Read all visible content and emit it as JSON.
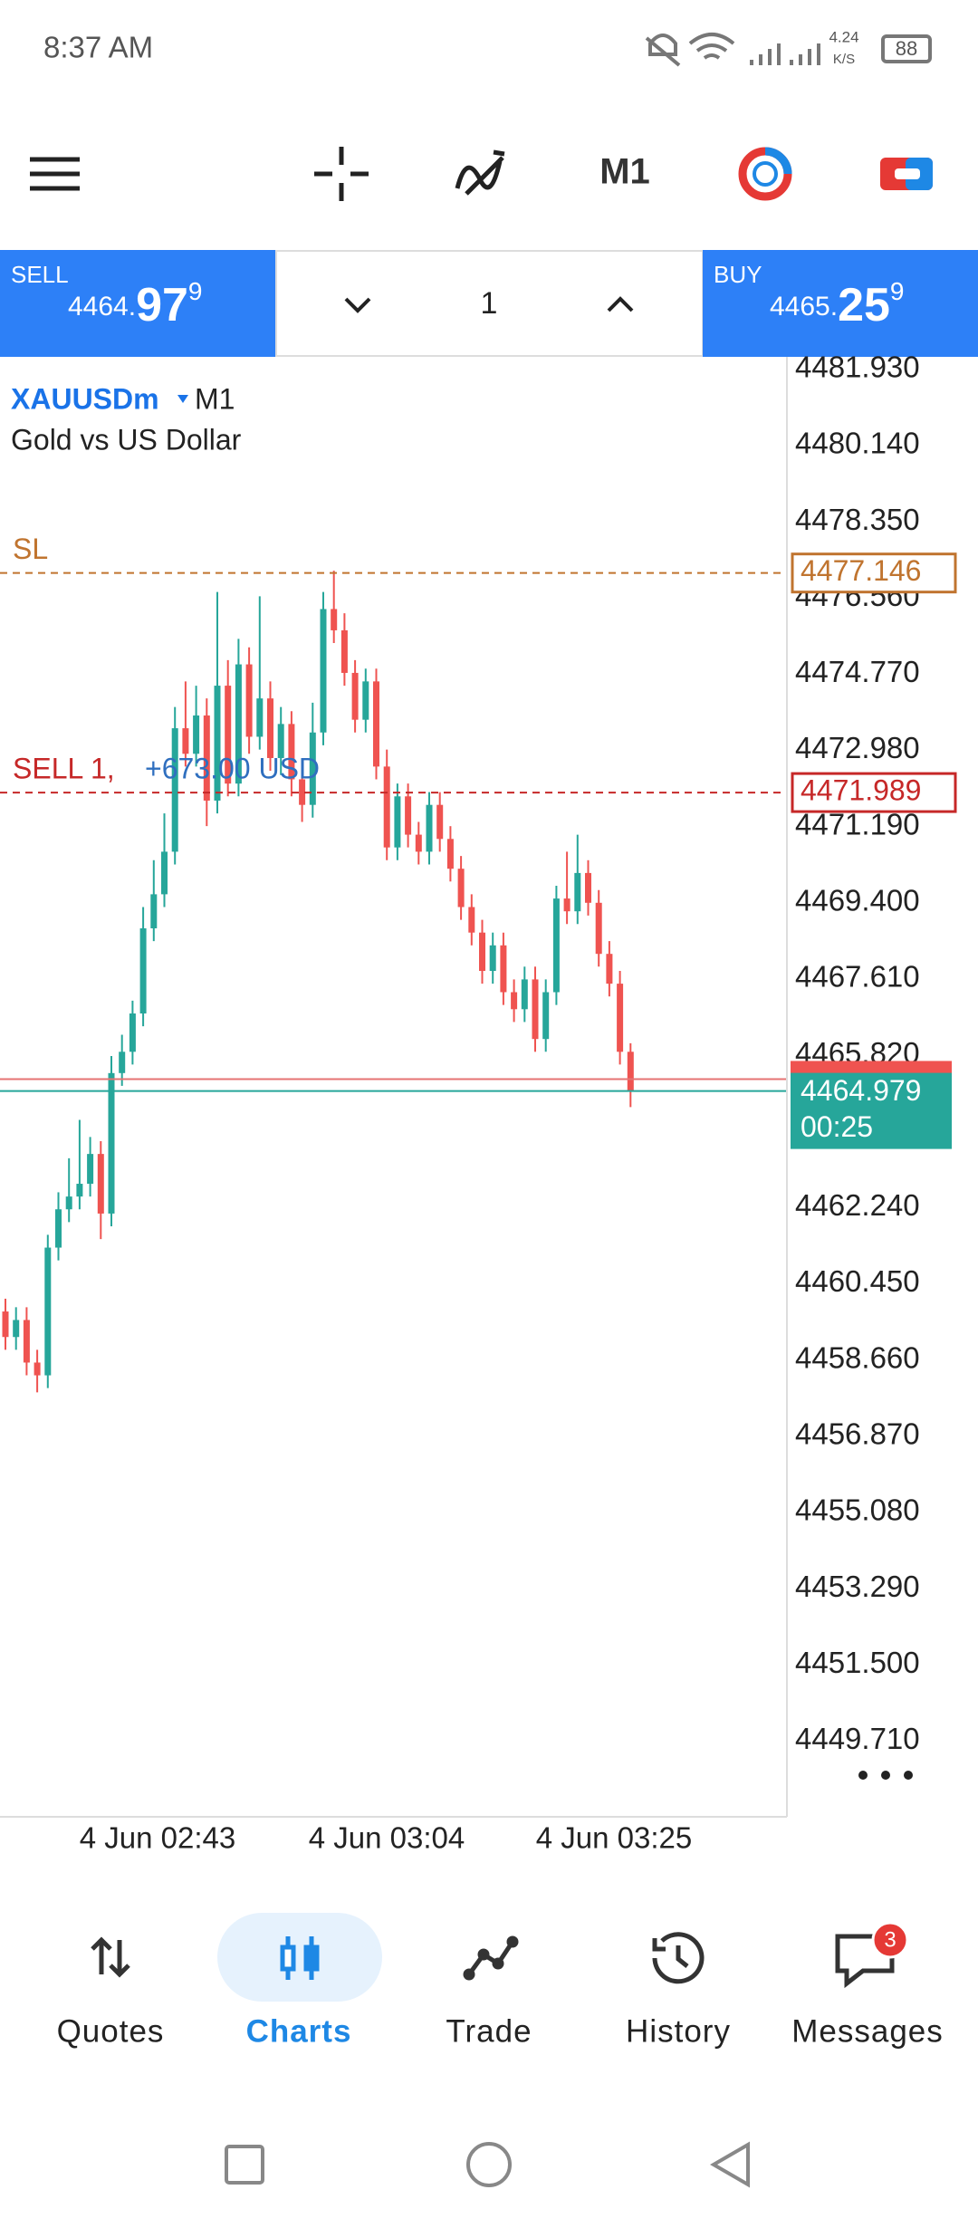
{
  "status_bar": {
    "time": "8:37 AM",
    "speed": "4.24",
    "speed_unit": "K/S",
    "battery": "88"
  },
  "toolbar": {
    "timeframe": "M1"
  },
  "trade_bar": {
    "sell": {
      "label": "SELL",
      "price_main": "4464.",
      "price_big": "97",
      "price_sup": "9"
    },
    "quantity": "1",
    "buy": {
      "label": "BUY",
      "price_main": "4465.",
      "price_big": "25",
      "price_sup": "9"
    }
  },
  "chart_data": {
    "type": "candlestick",
    "symbol": "XAUUSDm",
    "timeframe": "M1",
    "description": "Gold vs US Dollar",
    "up_color": "#26a69a",
    "down_color": "#ef5350",
    "ylim": [
      4447.93,
      4482.16
    ],
    "yticks": [
      {
        "value": 4481.93,
        "label": "4481.930"
      },
      {
        "value": 4480.14,
        "label": "4480.140"
      },
      {
        "value": 4478.35,
        "label": "4478.350"
      },
      {
        "value": 4476.56,
        "label": "4476.560"
      },
      {
        "value": 4474.77,
        "label": "4474.770"
      },
      {
        "value": 4472.98,
        "label": "4472.980"
      },
      {
        "value": 4471.19,
        "label": "4471.190"
      },
      {
        "value": 4469.4,
        "label": "4469.400"
      },
      {
        "value": 4467.61,
        "label": "4467.610"
      },
      {
        "value": 4465.82,
        "label": "4465.820"
      },
      {
        "value": 4462.24,
        "label": "4462.240"
      },
      {
        "value": 4460.45,
        "label": "4460.450"
      },
      {
        "value": 4458.66,
        "label": "4458.660"
      },
      {
        "value": 4456.87,
        "label": "4456.870"
      },
      {
        "value": 4455.08,
        "label": "4455.080"
      },
      {
        "value": 4453.29,
        "label": "4453.290"
      },
      {
        "value": 4451.5,
        "label": "4451.500"
      },
      {
        "value": 4449.71,
        "label": "4449.710"
      }
    ],
    "x_labels": [
      "4 Jun 02:43",
      "4 Jun 03:04",
      "4 Jun 03:25"
    ],
    "open": [
      4459.8,
      4459.2,
      4459.6,
      4458.6,
      4458.3,
      4461.3,
      4462.2,
      4462.5,
      4462.8,
      4463.5,
      4462.1,
      4465.4,
      4465.9,
      4466.8,
      4468.8,
      4469.6,
      4470.6,
      4473.5,
      4472.9,
      4473.8,
      4471.8,
      4474.5,
      4472.2,
      4475.0,
      4473.3,
      4474.2,
      4472.8,
      4473.6,
      4472.3,
      4471.7,
      4473.4,
      4476.3,
      4475.8,
      4474.8,
      4473.7,
      4474.6,
      4472.6,
      4470.7,
      4471.9,
      4471.0,
      4470.6,
      4471.7,
      4470.9,
      4470.2,
      4469.3,
      4468.7,
      4467.8,
      4468.4,
      4467.3,
      4466.9,
      4467.6,
      4466.2,
      4467.3,
      4469.5,
      4469.2,
      4470.1,
      4469.4,
      4468.2,
      4467.5,
      4465.9
    ],
    "high": [
      4460.1,
      4459.9,
      4459.9,
      4458.9,
      4461.6,
      4462.6,
      4463.4,
      4464.3,
      4463.9,
      4463.8,
      4465.8,
      4466.3,
      4467.1,
      4469.3,
      4470.4,
      4471.5,
      4474.0,
      4474.6,
      4474.5,
      4474.2,
      4476.7,
      4475.1,
      4475.6,
      4475.4,
      4476.6,
      4474.6,
      4474.0,
      4473.9,
      4472.7,
      4474.1,
      4476.7,
      4477.2,
      4476.2,
      4475.1,
      4474.9,
      4474.9,
      4473.0,
      4472.2,
      4472.2,
      4471.3,
      4472.0,
      4472.0,
      4471.2,
      4470.5,
      4469.6,
      4469.0,
      4468.7,
      4468.7,
      4467.6,
      4467.9,
      4467.9,
      4467.6,
      4469.8,
      4470.6,
      4471.0,
      4470.4,
      4469.7,
      4468.5,
      4467.8,
      4466.1
    ],
    "low": [
      4458.9,
      4458.9,
      4458.3,
      4457.9,
      4458.0,
      4461.0,
      4461.9,
      4462.2,
      4462.5,
      4461.5,
      4461.8,
      4465.1,
      4465.6,
      4466.5,
      4468.5,
      4469.3,
      4470.3,
      4472.6,
      4472.6,
      4471.2,
      4471.5,
      4471.9,
      4471.9,
      4472.9,
      4473.0,
      4472.5,
      4472.4,
      4471.9,
      4471.3,
      4471.4,
      4473.1,
      4475.5,
      4474.5,
      4473.4,
      4473.4,
      4472.3,
      4470.4,
      4470.4,
      4470.7,
      4470.3,
      4470.3,
      4470.6,
      4469.9,
      4469.0,
      4468.4,
      4467.5,
      4467.5,
      4467.0,
      4466.6,
      4466.6,
      4465.9,
      4465.9,
      4467.0,
      4468.9,
      4468.9,
      4469.1,
      4467.9,
      4467.2,
      4465.6,
      4464.6
    ],
    "close": [
      4459.2,
      4459.6,
      4458.6,
      4458.3,
      4461.3,
      4462.2,
      4462.5,
      4462.8,
      4463.5,
      4462.1,
      4465.4,
      4465.9,
      4466.8,
      4468.8,
      4469.6,
      4470.6,
      4473.5,
      4472.9,
      4473.8,
      4471.8,
      4474.5,
      4472.2,
      4475.0,
      4473.3,
      4474.2,
      4472.8,
      4473.6,
      4472.3,
      4471.7,
      4473.4,
      4476.3,
      4475.8,
      4474.8,
      4473.7,
      4474.6,
      4472.6,
      4470.7,
      4471.9,
      4471.0,
      4470.6,
      4471.7,
      4470.9,
      4470.2,
      4469.3,
      4468.7,
      4467.8,
      4468.4,
      4467.3,
      4466.9,
      4467.6,
      4466.2,
      4467.3,
      4469.5,
      4469.2,
      4470.1,
      4469.4,
      4468.2,
      4467.5,
      4465.9,
      4464.98
    ],
    "ask_line": 4465.259,
    "sl_line": {
      "value": 4477.146,
      "label": "SL",
      "price_label": "4477.146",
      "color": "#c0742f"
    },
    "order_line": {
      "value": 4471.989,
      "label": "SELL 1,",
      "profit": "+673.00 USD",
      "price_label": "4471.989",
      "color": "#c62828"
    },
    "bid_line": {
      "value": 4464.979,
      "price_label": "4464.979",
      "countdown": "00:25",
      "color": "#26a69a"
    }
  },
  "nav": {
    "items": [
      "Quotes",
      "Charts",
      "Trade",
      "History",
      "Messages"
    ],
    "badge": "3"
  }
}
